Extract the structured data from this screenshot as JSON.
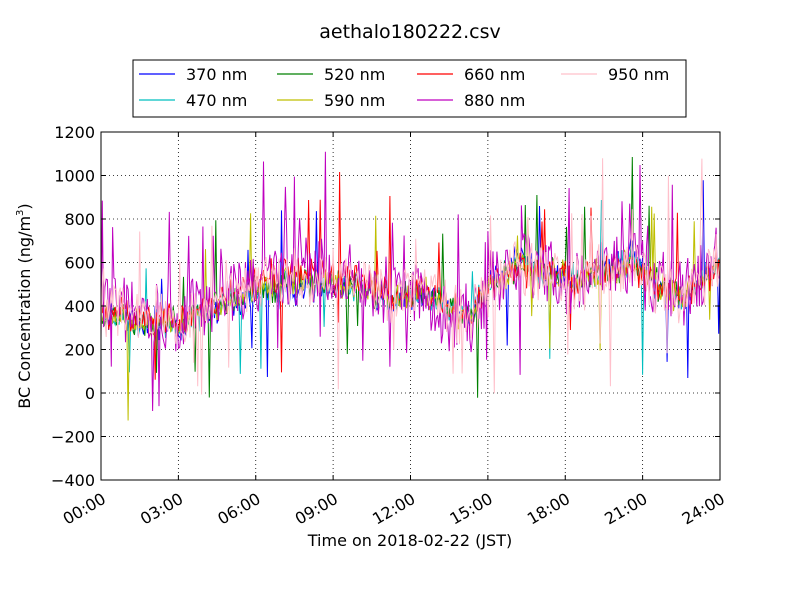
{
  "chart_data": {
    "type": "line",
    "title": "aethalo180222.csv",
    "xlabel": "Time on 2018-02-22 (JST)",
    "ylabel": "BC Concentration (ng/m",
    "ylabel_sup": "3",
    "ylabel_end": ")",
    "xlim_hours": [
      0,
      24
    ],
    "ylim": [
      -400,
      1200
    ],
    "x_ticks": [
      {
        "hour": 0,
        "label": "00:00"
      },
      {
        "hour": 3,
        "label": "03:00"
      },
      {
        "hour": 6,
        "label": "06:00"
      },
      {
        "hour": 9,
        "label": "09:00"
      },
      {
        "hour": 12,
        "label": "12:00"
      },
      {
        "hour": 15,
        "label": "15:00"
      },
      {
        "hour": 18,
        "label": "18:00"
      },
      {
        "hour": 21,
        "label": "21:00"
      },
      {
        "hour": 24,
        "label": "24:00"
      }
    ],
    "y_ticks": [
      -400,
      -200,
      0,
      200,
      400,
      600,
      800,
      1000,
      1200
    ],
    "grid": true,
    "legend_position": "top",
    "series": [
      {
        "name": "370 nm",
        "color": "#0000ff",
        "noise": 45,
        "spikes": 0.02,
        "anchors": [
          [
            0,
            380
          ],
          [
            1.5,
            320
          ],
          [
            3,
            310
          ],
          [
            4.5,
            380
          ],
          [
            6,
            450
          ],
          [
            7.5,
            470
          ],
          [
            9,
            490
          ],
          [
            10.5,
            470
          ],
          [
            11.5,
            430
          ],
          [
            12.5,
            470
          ],
          [
            13.5,
            390
          ],
          [
            14.3,
            360
          ],
          [
            15,
            520
          ],
          [
            16,
            610
          ],
          [
            17.5,
            560
          ],
          [
            18.5,
            520
          ],
          [
            19.5,
            580
          ],
          [
            20.5,
            640
          ],
          [
            21.5,
            520
          ],
          [
            22.5,
            430
          ],
          [
            24,
            620
          ]
        ]
      },
      {
        "name": "470 nm",
        "color": "#00bfbf",
        "noise": 45,
        "spikes": 0.02,
        "anchors": [
          [
            0,
            370
          ],
          [
            1.5,
            320
          ],
          [
            3,
            310
          ],
          [
            4.5,
            390
          ],
          [
            6,
            460
          ],
          [
            7.5,
            500
          ],
          [
            9,
            500
          ],
          [
            10.5,
            470
          ],
          [
            11.5,
            430
          ],
          [
            12.5,
            470
          ],
          [
            13.5,
            380
          ],
          [
            14.3,
            370
          ],
          [
            15,
            500
          ],
          [
            16,
            580
          ],
          [
            17.5,
            560
          ],
          [
            18.5,
            520
          ],
          [
            19.5,
            560
          ],
          [
            20.5,
            600
          ],
          [
            21.5,
            510
          ],
          [
            22.5,
            430
          ],
          [
            24,
            600
          ]
        ]
      },
      {
        "name": "520 nm",
        "color": "#008000",
        "noise": 45,
        "spikes": 0.02,
        "anchors": [
          [
            0,
            370
          ],
          [
            1.5,
            320
          ],
          [
            3,
            315
          ],
          [
            4.5,
            395
          ],
          [
            6,
            470
          ],
          [
            7.5,
            510
          ],
          [
            9,
            510
          ],
          [
            10.5,
            470
          ],
          [
            11.5,
            430
          ],
          [
            12.5,
            470
          ],
          [
            13.5,
            380
          ],
          [
            14.3,
            370
          ],
          [
            15,
            490
          ],
          [
            16,
            570
          ],
          [
            17.5,
            560
          ],
          [
            18.5,
            520
          ],
          [
            19.5,
            560
          ],
          [
            20.5,
            590
          ],
          [
            21.5,
            510
          ],
          [
            22.5,
            430
          ],
          [
            24,
            590
          ]
        ]
      },
      {
        "name": "590 nm",
        "color": "#bfbf00",
        "noise": 50,
        "spikes": 0.03,
        "anchors": [
          [
            0,
            370
          ],
          [
            1.5,
            330
          ],
          [
            3,
            320
          ],
          [
            4.5,
            400
          ],
          [
            6,
            480
          ],
          [
            7.5,
            520
          ],
          [
            9,
            510
          ],
          [
            10.5,
            480
          ],
          [
            11.5,
            440
          ],
          [
            12.5,
            480
          ],
          [
            13.5,
            380
          ],
          [
            14.3,
            370
          ],
          [
            15,
            490
          ],
          [
            16,
            570
          ],
          [
            17.5,
            560
          ],
          [
            18.5,
            520
          ],
          [
            19.5,
            560
          ],
          [
            20.5,
            590
          ],
          [
            21.5,
            500
          ],
          [
            22.5,
            430
          ],
          [
            24,
            590
          ]
        ]
      },
      {
        "name": "660 nm",
        "color": "#ff0000",
        "noise": 55,
        "spikes": 0.03,
        "anchors": [
          [
            0,
            380
          ],
          [
            1.5,
            340
          ],
          [
            3,
            330
          ],
          [
            4.5,
            410
          ],
          [
            6,
            520
          ],
          [
            7.5,
            560
          ],
          [
            9,
            540
          ],
          [
            10.5,
            500
          ],
          [
            11.5,
            450
          ],
          [
            12.5,
            500
          ],
          [
            13.5,
            390
          ],
          [
            14.3,
            370
          ],
          [
            15,
            490
          ],
          [
            16,
            560
          ],
          [
            17.5,
            560
          ],
          [
            18.5,
            510
          ],
          [
            19.5,
            560
          ],
          [
            20.5,
            580
          ],
          [
            21.5,
            500
          ],
          [
            22.5,
            430
          ],
          [
            24,
            590
          ]
        ]
      },
      {
        "name": "880 nm",
        "color": "#bf00bf",
        "noise": 150,
        "spikes": 0.08,
        "anchors": [
          [
            0,
            400
          ],
          [
            1.5,
            370
          ],
          [
            3,
            350
          ],
          [
            4.5,
            440
          ],
          [
            6,
            520
          ],
          [
            7.5,
            570
          ],
          [
            9,
            560
          ],
          [
            10.5,
            520
          ],
          [
            11.5,
            460
          ],
          [
            12.5,
            470
          ],
          [
            13.5,
            330
          ],
          [
            14.3,
            330
          ],
          [
            15,
            500
          ],
          [
            16,
            570
          ],
          [
            17.5,
            560
          ],
          [
            18.5,
            500
          ],
          [
            19.5,
            590
          ],
          [
            20.5,
            600
          ],
          [
            21.5,
            480
          ],
          [
            22.5,
            460
          ],
          [
            24,
            600
          ]
        ]
      },
      {
        "name": "950 nm",
        "color": "#ffc0cb",
        "noise": 120,
        "spikes": 0.06,
        "anchors": [
          [
            0,
            390
          ],
          [
            1.5,
            350
          ],
          [
            3,
            340
          ],
          [
            4.5,
            420
          ],
          [
            6,
            500
          ],
          [
            7.5,
            540
          ],
          [
            9,
            530
          ],
          [
            10.5,
            500
          ],
          [
            11.5,
            440
          ],
          [
            12.5,
            480
          ],
          [
            13.5,
            360
          ],
          [
            14.3,
            350
          ],
          [
            15,
            490
          ],
          [
            16,
            560
          ],
          [
            17.5,
            550
          ],
          [
            18.5,
            510
          ],
          [
            19.5,
            570
          ],
          [
            20.5,
            590
          ],
          [
            21.5,
            490
          ],
          [
            22.5,
            440
          ],
          [
            24,
            600
          ]
        ]
      }
    ]
  }
}
